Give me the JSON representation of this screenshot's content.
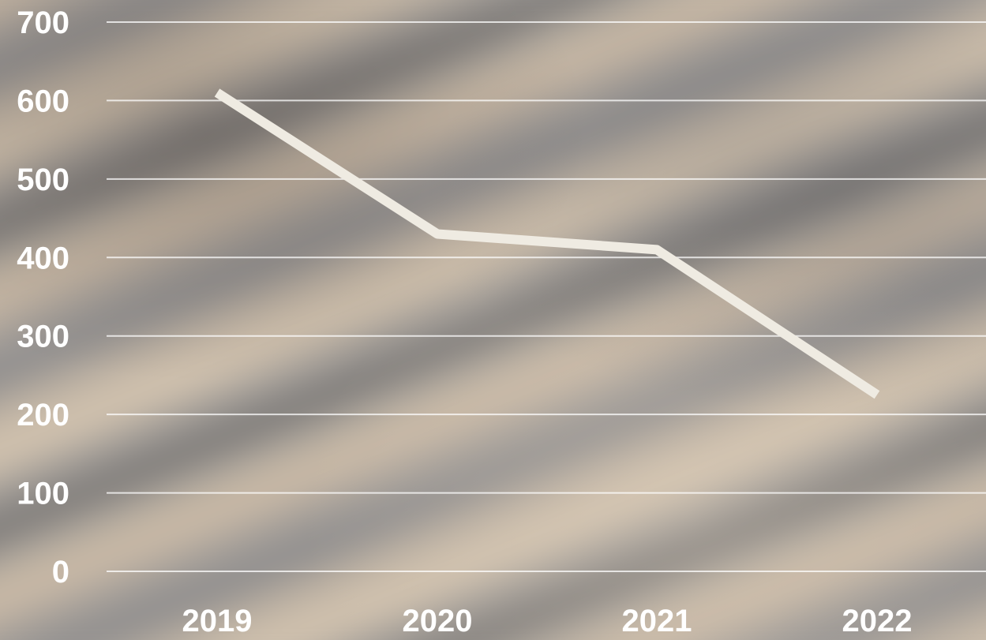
{
  "chart_data": {
    "type": "line",
    "categories": [
      "2019",
      "2020",
      "2021",
      "2022"
    ],
    "series": [
      {
        "values": [
          610,
          430,
          410,
          225
        ]
      }
    ],
    "ylim": [
      0,
      700
    ],
    "yticks": [
      "0",
      "100",
      "200",
      "300",
      "400",
      "500",
      "600",
      "700"
    ],
    "grid": true,
    "legend": "none",
    "colors": {
      "line": "#efebe2",
      "grid": "#ffffff",
      "labels": "#ffffff"
    }
  }
}
